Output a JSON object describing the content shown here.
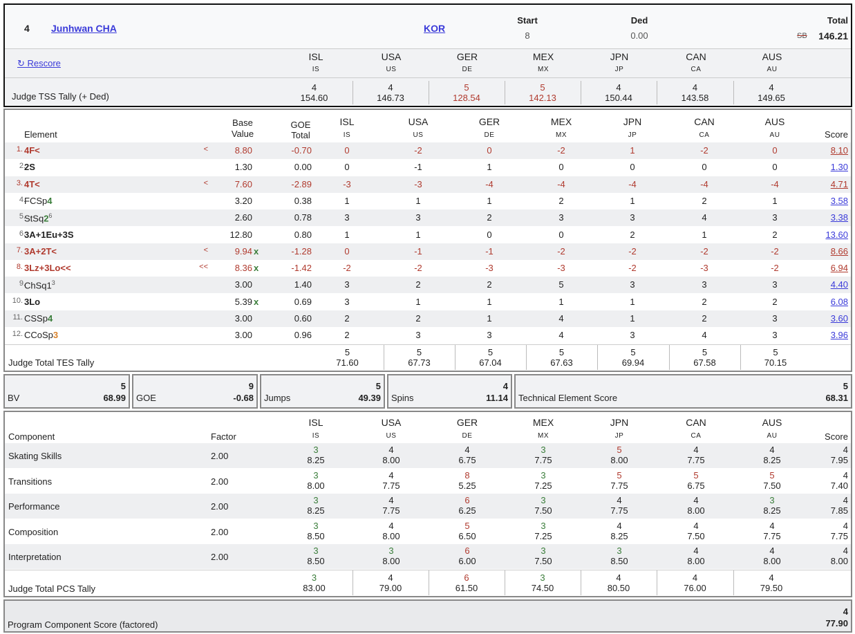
{
  "skater": {
    "rank": "4",
    "name": "Junhwan CHA",
    "nation": "KOR",
    "start_label": "Start",
    "start_value": "8",
    "ded_label": "Ded",
    "ded_value": "0.00",
    "total_label": "Total",
    "sb_label": "SB",
    "total_value": "146.21"
  },
  "rescore_label": "↻ Rescore",
  "judges": [
    {
      "name": "ISL",
      "code": "IS"
    },
    {
      "name": "USA",
      "code": "US"
    },
    {
      "name": "GER",
      "code": "DE"
    },
    {
      "name": "MEX",
      "code": "MX"
    },
    {
      "name": "JPN",
      "code": "JP"
    },
    {
      "name": "CAN",
      "code": "CA"
    },
    {
      "name": "AUS",
      "code": "AU"
    }
  ],
  "tss_tally": {
    "label": "Judge TSS Tally (+ Ded)",
    "cells": [
      {
        "rank": "4",
        "value": "154.60",
        "color": "#222"
      },
      {
        "rank": "4",
        "value": "146.73",
        "color": "#222"
      },
      {
        "rank": "5",
        "value": "128.54",
        "color": "#b03a2e"
      },
      {
        "rank": "5",
        "value": "142.13",
        "color": "#b03a2e"
      },
      {
        "rank": "4",
        "value": "150.44",
        "color": "#222"
      },
      {
        "rank": "4",
        "value": "143.58",
        "color": "#222"
      },
      {
        "rank": "4",
        "value": "149.65",
        "color": "#222"
      }
    ]
  },
  "elements_header": {
    "element": "Element",
    "base_value_1": "Base",
    "base_value_2": "Value",
    "goe_1": "GOE",
    "goe_2": "Total",
    "score": "Score"
  },
  "elements": [
    {
      "num": "1.",
      "name": "4F<",
      "suffix": "",
      "sup": "",
      "flag": "<",
      "bv": "8.80",
      "x": "",
      "goe": "-0.70",
      "marks": [
        "0",
        "-2",
        "0",
        "-2",
        "1",
        "-2",
        "0"
      ],
      "score": "8.10",
      "style": "red"
    },
    {
      "num": "2.",
      "name": "2S",
      "suffix": "",
      "sup": "",
      "flag": "",
      "bv": "1.30",
      "x": "",
      "goe": "0.00",
      "marks": [
        "0",
        "-1",
        "1",
        "0",
        "0",
        "0",
        "0"
      ],
      "score": "1.30",
      "style": "bold"
    },
    {
      "num": "3.",
      "name": "4T<",
      "suffix": "",
      "sup": "",
      "flag": "<",
      "bv": "7.60",
      "x": "",
      "goe": "-2.89",
      "marks": [
        "-3",
        "-3",
        "-4",
        "-4",
        "-4",
        "-4",
        "-4"
      ],
      "score": "4.71",
      "style": "red"
    },
    {
      "num": "4.",
      "name": "FCSp",
      "suffix": "4",
      "sup": "",
      "flag": "",
      "bv": "3.20",
      "x": "",
      "goe": "0.38",
      "marks": [
        "1",
        "1",
        "1",
        "2",
        "1",
        "2",
        "1"
      ],
      "score": "3.58",
      "style": "plain"
    },
    {
      "num": "5.",
      "name": "StSq",
      "suffix": "2",
      "sup": "6",
      "flag": "",
      "bv": "2.60",
      "x": "",
      "goe": "0.78",
      "marks": [
        "3",
        "3",
        "2",
        "3",
        "3",
        "4",
        "3"
      ],
      "score": "3.38",
      "style": "plain"
    },
    {
      "num": "6.",
      "name": "3A+1Eu+3S",
      "suffix": "",
      "sup": "",
      "flag": "",
      "bv": "12.80",
      "x": "",
      "goe": "0.80",
      "marks": [
        "1",
        "1",
        "0",
        "0",
        "2",
        "1",
        "2"
      ],
      "score": "13.60",
      "style": "bold"
    },
    {
      "num": "7.",
      "name": "3A+2T<",
      "suffix": "",
      "sup": "",
      "flag": "<",
      "bv": "9.94",
      "x": "x",
      "goe": "-1.28",
      "marks": [
        "0",
        "-1",
        "-1",
        "-2",
        "-2",
        "-2",
        "-2"
      ],
      "score": "8.66",
      "style": "red"
    },
    {
      "num": "8.",
      "name": "3Lz+3Lo<<",
      "suffix": "",
      "sup": "",
      "flag": "<<",
      "bv": "8.36",
      "x": "x",
      "goe": "-1.42",
      "marks": [
        "-2",
        "-2",
        "-3",
        "-3",
        "-2",
        "-3",
        "-2"
      ],
      "score": "6.94",
      "style": "red"
    },
    {
      "num": "9.",
      "name": "ChSq1",
      "suffix": "",
      "sup": "3",
      "flag": "",
      "bv": "3.00",
      "x": "",
      "goe": "1.40",
      "marks": [
        "3",
        "2",
        "2",
        "5",
        "3",
        "3",
        "3"
      ],
      "score": "4.40",
      "style": "plain"
    },
    {
      "num": "10.",
      "name": "3Lo",
      "suffix": "",
      "sup": "",
      "flag": "",
      "bv": "5.39",
      "x": "x",
      "goe": "0.69",
      "marks": [
        "3",
        "1",
        "1",
        "1",
        "1",
        "2",
        "2"
      ],
      "score": "6.08",
      "style": "bold"
    },
    {
      "num": "11.",
      "name": "CSSp",
      "suffix": "4",
      "sup": "",
      "flag": "",
      "bv": "3.00",
      "x": "",
      "goe": "0.60",
      "marks": [
        "2",
        "2",
        "1",
        "4",
        "1",
        "2",
        "3"
      ],
      "score": "3.60",
      "style": "plain"
    },
    {
      "num": "12.",
      "name": "CCoSp",
      "suffix": "3",
      "sup": "",
      "flag": "",
      "bv": "3.00",
      "x": "",
      "goe": "0.96",
      "marks": [
        "2",
        "3",
        "3",
        "4",
        "3",
        "4",
        "3"
      ],
      "score": "3.96",
      "style": "plain",
      "suffix_color": "orange"
    }
  ],
  "tes_tally": {
    "label": "Judge Total TES Tally",
    "cells": [
      {
        "rank": "5",
        "value": "71.60"
      },
      {
        "rank": "5",
        "value": "67.73"
      },
      {
        "rank": "5",
        "value": "67.04"
      },
      {
        "rank": "5",
        "value": "67.63"
      },
      {
        "rank": "5",
        "value": "69.94"
      },
      {
        "rank": "5",
        "value": "67.58"
      },
      {
        "rank": "5",
        "value": "70.15"
      }
    ]
  },
  "summary": {
    "bv_label": "BV",
    "bv_rank": "5",
    "bv_value": "68.99",
    "goe_label": "GOE",
    "goe_rank": "9",
    "goe_value": "-0.68",
    "jumps_label": "Jumps",
    "jumps_rank": "5",
    "jumps_value": "49.39",
    "spins_label": "Spins",
    "spins_rank": "4",
    "spins_value": "11.14",
    "tes_label": "Technical Element Score",
    "tes_rank": "5",
    "tes_value": "68.31"
  },
  "pcs_header": {
    "component": "Component",
    "factor": "Factor",
    "score": "Score"
  },
  "components": [
    {
      "name": "Skating Skills",
      "factor": "2.00",
      "cells": [
        {
          "r": "3",
          "v": "8.25",
          "c": "green"
        },
        {
          "r": "4",
          "v": "8.00",
          "c": ""
        },
        {
          "r": "4",
          "v": "6.75",
          "c": ""
        },
        {
          "r": "3",
          "v": "7.75",
          "c": "green"
        },
        {
          "r": "5",
          "v": "8.00",
          "c": "red"
        },
        {
          "r": "4",
          "v": "7.75",
          "c": ""
        },
        {
          "r": "4",
          "v": "8.25",
          "c": ""
        }
      ],
      "score_rank": "4",
      "score": "7.95"
    },
    {
      "name": "Transitions",
      "factor": "2.00",
      "cells": [
        {
          "r": "3",
          "v": "8.00",
          "c": "green"
        },
        {
          "r": "4",
          "v": "7.75",
          "c": ""
        },
        {
          "r": "8",
          "v": "5.25",
          "c": "red"
        },
        {
          "r": "3",
          "v": "7.25",
          "c": "green"
        },
        {
          "r": "5",
          "v": "7.75",
          "c": "red"
        },
        {
          "r": "5",
          "v": "6.75",
          "c": "red"
        },
        {
          "r": "5",
          "v": "7.50",
          "c": "red"
        }
      ],
      "score_rank": "4",
      "score": "7.40"
    },
    {
      "name": "Performance",
      "factor": "2.00",
      "cells": [
        {
          "r": "3",
          "v": "8.25",
          "c": "green"
        },
        {
          "r": "4",
          "v": "7.75",
          "c": ""
        },
        {
          "r": "6",
          "v": "6.25",
          "c": "red"
        },
        {
          "r": "3",
          "v": "7.50",
          "c": "green"
        },
        {
          "r": "4",
          "v": "7.75",
          "c": ""
        },
        {
          "r": "4",
          "v": "8.00",
          "c": ""
        },
        {
          "r": "3",
          "v": "8.25",
          "c": "green"
        }
      ],
      "score_rank": "4",
      "score": "7.85"
    },
    {
      "name": "Composition",
      "factor": "2.00",
      "cells": [
        {
          "r": "3",
          "v": "8.50",
          "c": "green"
        },
        {
          "r": "4",
          "v": "8.00",
          "c": ""
        },
        {
          "r": "5",
          "v": "6.50",
          "c": "red"
        },
        {
          "r": "3",
          "v": "7.25",
          "c": "green"
        },
        {
          "r": "4",
          "v": "8.25",
          "c": ""
        },
        {
          "r": "4",
          "v": "7.50",
          "c": ""
        },
        {
          "r": "4",
          "v": "7.75",
          "c": ""
        }
      ],
      "score_rank": "4",
      "score": "7.75"
    },
    {
      "name": "Interpretation",
      "factor": "2.00",
      "cells": [
        {
          "r": "3",
          "v": "8.50",
          "c": "green"
        },
        {
          "r": "3",
          "v": "8.00",
          "c": "green"
        },
        {
          "r": "6",
          "v": "6.00",
          "c": "red"
        },
        {
          "r": "3",
          "v": "7.50",
          "c": "green"
        },
        {
          "r": "3",
          "v": "8.50",
          "c": "green"
        },
        {
          "r": "4",
          "v": "8.00",
          "c": ""
        },
        {
          "r": "4",
          "v": "8.00",
          "c": ""
        }
      ],
      "score_rank": "4",
      "score": "8.00"
    }
  ],
  "pcs_tally": {
    "label": "Judge Total PCS Tally",
    "cells": [
      {
        "rank": "3",
        "value": "83.00",
        "c": "green"
      },
      {
        "rank": "4",
        "value": "79.00",
        "c": ""
      },
      {
        "rank": "6",
        "value": "61.50",
        "c": "red"
      },
      {
        "rank": "3",
        "value": "74.50",
        "c": "green"
      },
      {
        "rank": "4",
        "value": "80.50",
        "c": ""
      },
      {
        "rank": "4",
        "value": "76.00",
        "c": ""
      },
      {
        "rank": "4",
        "value": "79.50",
        "c": ""
      }
    ]
  },
  "pcs_score": {
    "label": "Program Component Score (factored)",
    "rank": "4",
    "value": "77.90"
  },
  "colors": {
    "red": "#b03a2e",
    "green": "#3a7d3a",
    "orange": "#d9822b",
    "link": "#3a3ad9"
  }
}
